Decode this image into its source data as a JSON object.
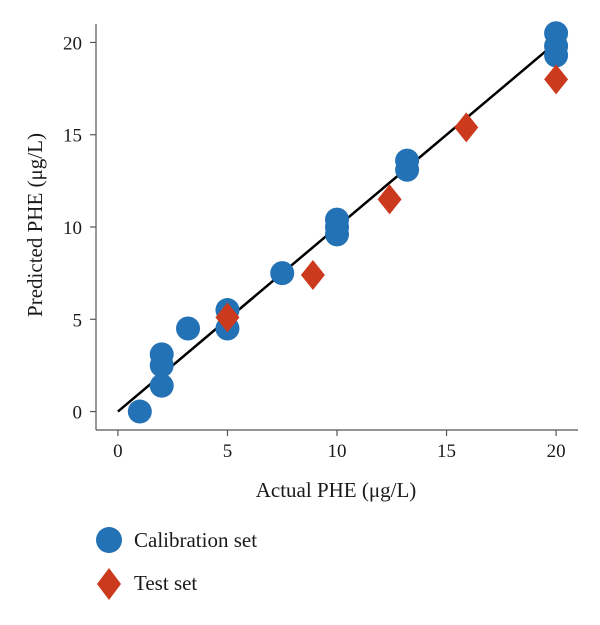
{
  "chart_data": {
    "type": "scatter",
    "xlabel": "Actual PHE (μg/L)",
    "ylabel": "Predicted PHE (μg/L)",
    "xlim": [
      -1,
      21
    ],
    "ylim": [
      -1,
      21
    ],
    "xticks": [
      0,
      5,
      10,
      15,
      20
    ],
    "yticks": [
      0,
      5,
      10,
      15,
      20
    ],
    "grid": false,
    "legend_position": "bottom-left",
    "fit_line": {
      "x": [
        0,
        20
      ],
      "y": [
        0,
        20
      ],
      "color": "#000000"
    },
    "series": [
      {
        "name": "Calibration set",
        "marker": "circle",
        "color": "#2372b5",
        "x": [
          1,
          2,
          2,
          2,
          3.2,
          5,
          5,
          7.5,
          10,
          10,
          10,
          13.2,
          13.2,
          20,
          20,
          20
        ],
        "y": [
          0,
          1.4,
          2.5,
          3.1,
          4.5,
          4.5,
          5.5,
          7.5,
          9.6,
          10,
          10.4,
          13.1,
          13.6,
          19.3,
          19.8,
          20.5
        ]
      },
      {
        "name": "Test set",
        "marker": "diamond",
        "color": "#cc3a1e",
        "x": [
          5,
          8.9,
          12.4,
          15.9,
          20
        ],
        "y": [
          5.1,
          7.4,
          11.5,
          15.4,
          18
        ]
      }
    ]
  }
}
